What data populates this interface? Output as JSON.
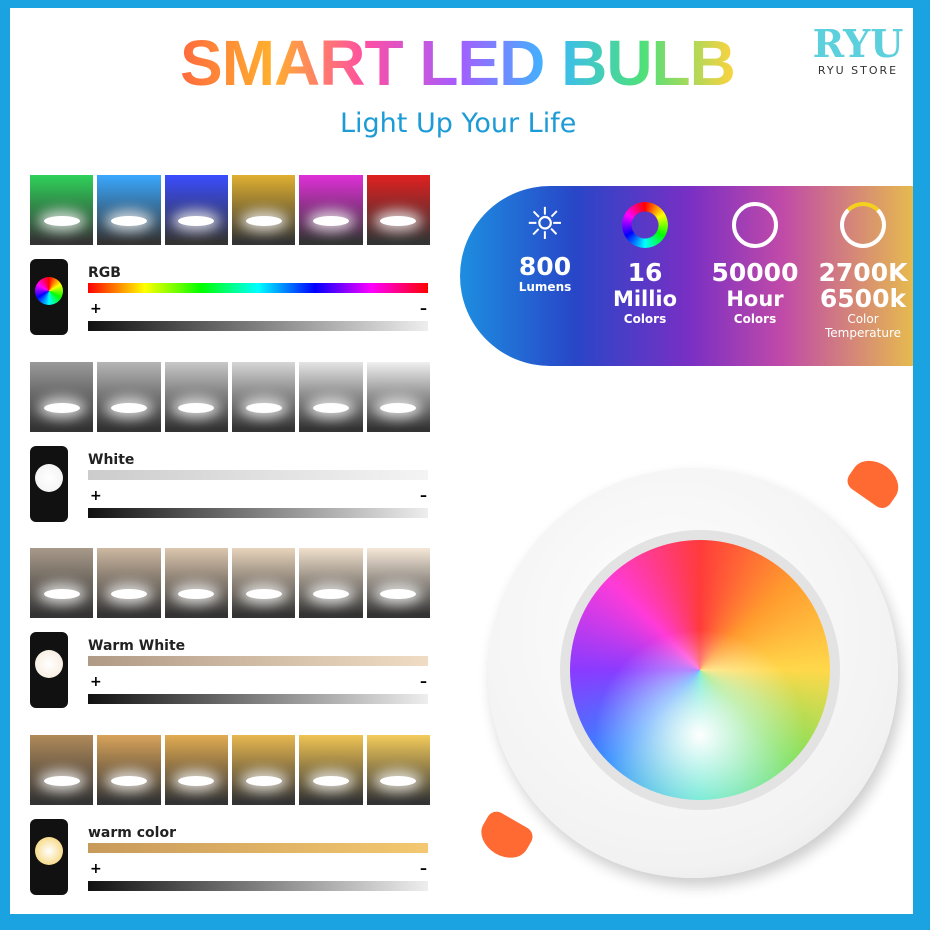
{
  "header": {
    "title": "SMART LED BULB",
    "subtitle": "Light Up Your Life"
  },
  "logo": {
    "mark": "RYU",
    "store": "RYU STORE",
    "color": "#5cd0dc"
  },
  "frame_color": "#1aa3e0",
  "sections": [
    {
      "label": "RGB",
      "plus": "+",
      "minus": "–",
      "tiles": [
        "#2fd15a",
        "#3aa8ff",
        "#3a4dff",
        "#e0b030",
        "#e030d8",
        "#e02020"
      ],
      "bar": "linear-gradient(90deg,#f00,#ff0,#0f0,#0ff,#00f,#f0f,#f00)"
    },
    {
      "label": "White",
      "plus": "+",
      "minus": "–",
      "tiles": [
        "#9a9a9a",
        "#b6b6b6",
        "#c8c8c8",
        "#d6d6d6",
        "#e4e4e4",
        "#f0f0f0"
      ],
      "bar": "linear-gradient(90deg,#ccc,#f4f4f4)"
    },
    {
      "label": "Warm White",
      "plus": "+",
      "minus": "–",
      "tiles": [
        "#a89a8a",
        "#cdb8a2",
        "#dcc6ae",
        "#e8d4bc",
        "#f0e0cc",
        "#f5e8d8"
      ],
      "bar": "linear-gradient(90deg,#b09a86,#f0dcc4)"
    },
    {
      "label": "warm color",
      "plus": "+",
      "minus": "–",
      "tiles": [
        "#b08a5a",
        "#d8a35a",
        "#e2ac52",
        "#e8b850",
        "#f0c454",
        "#f4cc5c"
      ],
      "bar": "linear-gradient(90deg,#c89a5a,#f4c870)"
    }
  ],
  "specs": [
    {
      "icon": "sun-icon",
      "value": "800",
      "unit": "Lumens",
      "extra": ""
    },
    {
      "icon": "color-wheel-icon",
      "value": "16",
      "unit": "Millio",
      "extra": "Colors"
    },
    {
      "icon": "clock-icon",
      "value": "50000",
      "unit": "Hour",
      "extra": "Colors"
    },
    {
      "icon": "temperature-dial-icon",
      "value": "2700K",
      "unit": "6500k",
      "extra": "Color Temperature"
    }
  ]
}
